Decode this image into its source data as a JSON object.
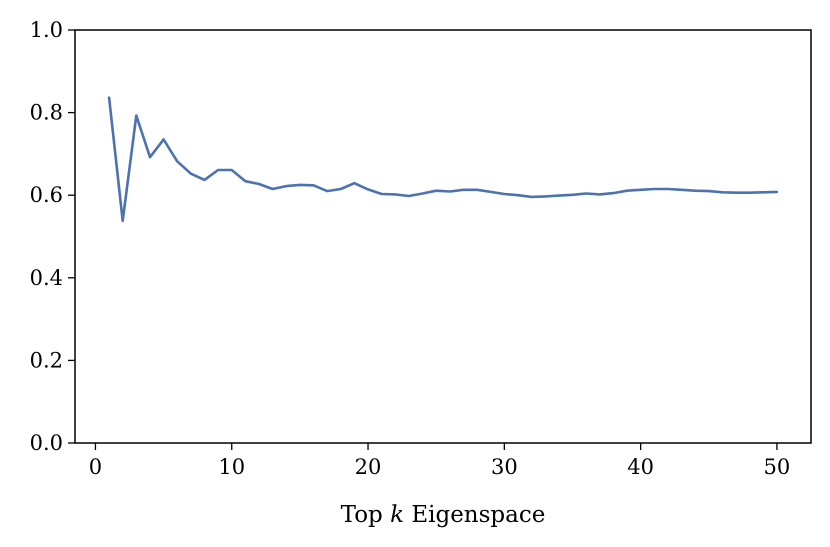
{
  "chart_data": {
    "type": "line",
    "title": "",
    "xlabel_parts": {
      "prefix": "Top ",
      "var": "k",
      "suffix": " Eigenspace"
    },
    "ylabel": "",
    "xlim": [
      -1.5,
      52.5
    ],
    "ylim": [
      0.0,
      1.0
    ],
    "xticks": [
      0,
      10,
      20,
      30,
      40,
      50
    ],
    "xtick_labels": [
      "0",
      "10",
      "20",
      "30",
      "40",
      "50"
    ],
    "yticks": [
      0.0,
      0.2,
      0.4,
      0.6,
      0.8,
      1.0
    ],
    "ytick_labels": [
      "0.0",
      "0.2",
      "0.4",
      "0.6",
      "0.8",
      "1.0"
    ],
    "grid": false,
    "legend": "none",
    "series": [
      {
        "color": "#4c72b0",
        "x": [
          1,
          2,
          3,
          4,
          5,
          6,
          7,
          8,
          9,
          10,
          11,
          12,
          13,
          14,
          15,
          16,
          17,
          18,
          19,
          20,
          21,
          22,
          23,
          24,
          25,
          26,
          27,
          28,
          29,
          30,
          31,
          32,
          33,
          34,
          35,
          36,
          37,
          38,
          39,
          40,
          41,
          42,
          43,
          44,
          45,
          46,
          47,
          48,
          49,
          50
        ],
        "y": [
          0.836,
          0.538,
          0.793,
          0.692,
          0.735,
          0.682,
          0.652,
          0.637,
          0.661,
          0.661,
          0.634,
          0.627,
          0.615,
          0.622,
          0.625,
          0.624,
          0.61,
          0.615,
          0.629,
          0.614,
          0.603,
          0.602,
          0.598,
          0.604,
          0.611,
          0.609,
          0.613,
          0.613,
          0.608,
          0.603,
          0.6,
          0.596,
          0.597,
          0.599,
          0.601,
          0.604,
          0.602,
          0.605,
          0.611,
          0.613,
          0.615,
          0.615,
          0.613,
          0.611,
          0.61,
          0.607,
          0.606,
          0.606,
          0.607,
          0.608
        ]
      }
    ]
  }
}
